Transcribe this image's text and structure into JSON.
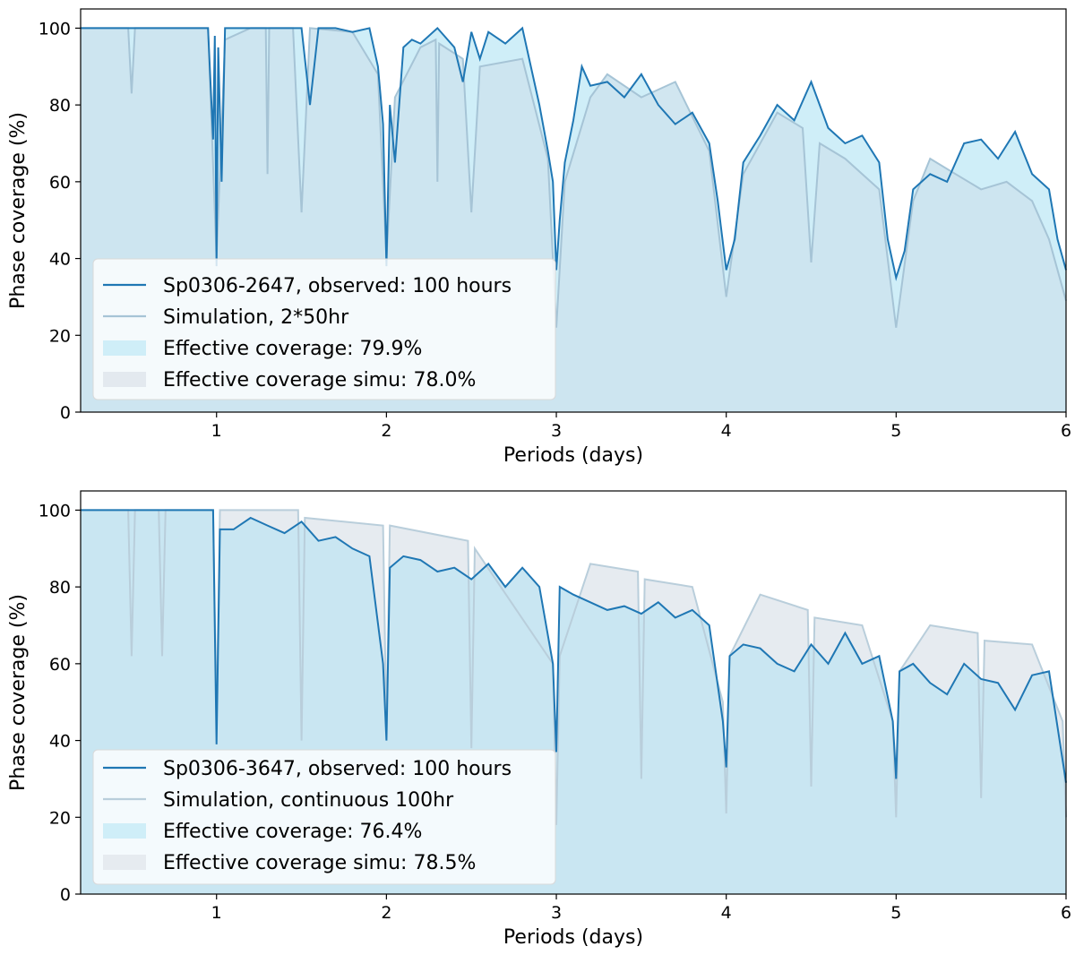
{
  "chart_data": [
    {
      "type": "line",
      "id": "top",
      "title": "",
      "xlabel": "Periods (days)",
      "ylabel": "Phase coverage (%)",
      "xlim": [
        0.2,
        6
      ],
      "ylim": [
        0,
        105
      ],
      "xticks": [
        1,
        2,
        3,
        4,
        5,
        6
      ],
      "xtick_labels": [
        "1",
        "2",
        "3",
        "4",
        "5",
        "6"
      ],
      "yticks": [
        0,
        20,
        40,
        60,
        80,
        100
      ],
      "ytick_labels": [
        "0",
        "20",
        "40",
        "60",
        "80",
        "100"
      ],
      "grid": false,
      "legend_position": "lower-left",
      "legend": [
        {
          "label": "Sp0306-2647, observed: 100 hours",
          "kind": "line",
          "color": "#1f77b4"
        },
        {
          "label": "Simulation, 2*50hr",
          "kind": "line",
          "color": "#a6c4d6"
        },
        {
          "label": "Effective coverage: 79.9%",
          "kind": "patch",
          "color": "#cfeef8"
        },
        {
          "label": "Effective coverage simu: 78.0%",
          "kind": "patch",
          "color": "#e3e9ef"
        }
      ],
      "series": [
        {
          "name": "Sp0306-2647, observed: 100 hours",
          "color": "#1f77b4",
          "x": [
            0.2,
            0.95,
            0.98,
            0.99,
            1.0,
            1.01,
            1.03,
            1.05,
            1.08,
            1.15,
            1.2,
            1.3,
            1.4,
            1.5,
            1.55,
            1.6,
            1.7,
            1.8,
            1.9,
            1.95,
            1.98,
            2.0,
            2.02,
            2.05,
            2.1,
            2.15,
            2.2,
            2.3,
            2.4,
            2.45,
            2.5,
            2.55,
            2.6,
            2.7,
            2.8,
            2.9,
            2.95,
            2.98,
            3.0,
            3.02,
            3.05,
            3.1,
            3.15,
            3.2,
            3.3,
            3.4,
            3.5,
            3.6,
            3.7,
            3.8,
            3.9,
            3.95,
            4.0,
            4.05,
            4.1,
            4.2,
            4.3,
            4.4,
            4.5,
            4.6,
            4.7,
            4.8,
            4.9,
            4.95,
            5.0,
            5.05,
            5.1,
            5.2,
            5.3,
            5.4,
            5.5,
            5.6,
            5.7,
            5.8,
            5.9,
            5.95,
            6.0
          ],
          "y": [
            100,
            100,
            71,
            98,
            38,
            95,
            60,
            100,
            100,
            100,
            100,
            100,
            100,
            100,
            80,
            100,
            100,
            99,
            100,
            90,
            75,
            38,
            80,
            65,
            95,
            97,
            96,
            100,
            95,
            86,
            99,
            92,
            99,
            96,
            100,
            80,
            68,
            60,
            37,
            50,
            65,
            76,
            90,
            85,
            86,
            82,
            88,
            80,
            75,
            78,
            70,
            55,
            37,
            45,
            65,
            72,
            80,
            76,
            86,
            74,
            70,
            72,
            65,
            45,
            35,
            42,
            58,
            62,
            60,
            70,
            71,
            66,
            73,
            62,
            58,
            45,
            37
          ]
        },
        {
          "name": "Simulation, 2*50hr",
          "color": "#a6c4d6",
          "x": [
            0.2,
            0.48,
            0.5,
            0.52,
            0.95,
            1.0,
            1.05,
            1.2,
            1.29,
            1.3,
            1.31,
            1.45,
            1.5,
            1.55,
            1.8,
            1.95,
            2.0,
            2.05,
            2.2,
            2.29,
            2.3,
            2.31,
            2.45,
            2.5,
            2.55,
            2.8,
            2.95,
            3.0,
            3.05,
            3.2,
            3.3,
            3.5,
            3.7,
            3.9,
            4.0,
            4.1,
            4.3,
            4.45,
            4.5,
            4.55,
            4.7,
            4.9,
            5.0,
            5.1,
            5.2,
            5.35,
            5.5,
            5.65,
            5.8,
            5.9,
            6.0
          ],
          "y": [
            100,
            100,
            83,
            100,
            100,
            40,
            97,
            100,
            100,
            62,
            100,
            100,
            52,
            100,
            99,
            88,
            40,
            82,
            95,
            97,
            60,
            96,
            92,
            52,
            90,
            92,
            66,
            22,
            60,
            82,
            88,
            82,
            86,
            68,
            30,
            62,
            78,
            74,
            39,
            70,
            66,
            58,
            22,
            55,
            66,
            62,
            58,
            60,
            55,
            45,
            29
          ]
        }
      ]
    },
    {
      "type": "line",
      "id": "bottom",
      "title": "",
      "xlabel": "Periods (days)",
      "ylabel": "Phase coverage (%)",
      "xlim": [
        0.2,
        6
      ],
      "ylim": [
        0,
        105
      ],
      "xticks": [
        1,
        2,
        3,
        4,
        5,
        6
      ],
      "xtick_labels": [
        "1",
        "2",
        "3",
        "4",
        "5",
        "6"
      ],
      "yticks": [
        0,
        20,
        40,
        60,
        80,
        100
      ],
      "ytick_labels": [
        "0",
        "20",
        "40",
        "60",
        "80",
        "100"
      ],
      "grid": false,
      "legend_position": "lower-left",
      "legend": [
        {
          "label": "Sp0306-3647, observed: 100 hours",
          "kind": "line",
          "color": "#1f77b4"
        },
        {
          "label": "Simulation, continuous 100hr",
          "kind": "line",
          "color": "#b9cedb"
        },
        {
          "label": "Effective coverage: 76.4%",
          "kind": "patch",
          "color": "#cfeef8"
        },
        {
          "label": "Effective coverage simu: 78.5%",
          "kind": "patch",
          "color": "#e6ebf0"
        }
      ],
      "series": [
        {
          "name": "Sp0306-3647, observed: 100 hours",
          "color": "#1f77b4",
          "x": [
            0.2,
            0.98,
            1.0,
            1.02,
            1.1,
            1.2,
            1.3,
            1.4,
            1.5,
            1.6,
            1.7,
            1.8,
            1.9,
            1.98,
            2.0,
            2.02,
            2.1,
            2.2,
            2.3,
            2.4,
            2.5,
            2.6,
            2.7,
            2.8,
            2.9,
            2.98,
            3.0,
            3.02,
            3.1,
            3.2,
            3.3,
            3.4,
            3.5,
            3.6,
            3.7,
            3.8,
            3.9,
            3.98,
            4.0,
            4.02,
            4.1,
            4.2,
            4.3,
            4.4,
            4.5,
            4.6,
            4.7,
            4.8,
            4.9,
            4.98,
            5.0,
            5.02,
            5.1,
            5.2,
            5.3,
            5.4,
            5.5,
            5.6,
            5.7,
            5.8,
            5.9,
            6.0
          ],
          "y": [
            100,
            100,
            39,
            95,
            95,
            98,
            96,
            94,
            97,
            92,
            93,
            90,
            88,
            60,
            40,
            85,
            88,
            87,
            84,
            85,
            82,
            86,
            80,
            85,
            80,
            60,
            37,
            80,
            78,
            76,
            74,
            75,
            73,
            76,
            72,
            74,
            70,
            45,
            33,
            62,
            65,
            64,
            60,
            58,
            65,
            60,
            68,
            60,
            62,
            45,
            30,
            58,
            60,
            55,
            52,
            60,
            56,
            55,
            48,
            57,
            58,
            29
          ]
        },
        {
          "name": "Simulation, continuous 100hr",
          "color": "#b9cedb",
          "x": [
            0.2,
            0.48,
            0.5,
            0.52,
            0.66,
            0.68,
            0.7,
            0.98,
            1.0,
            1.02,
            1.48,
            1.5,
            1.52,
            1.98,
            2.0,
            2.02,
            2.48,
            2.5,
            2.52,
            2.98,
            3.0,
            3.02,
            3.2,
            3.48,
            3.5,
            3.52,
            3.8,
            3.98,
            4.0,
            4.02,
            4.2,
            4.48,
            4.5,
            4.52,
            4.8,
            4.98,
            5.0,
            5.02,
            5.2,
            5.48,
            5.5,
            5.52,
            5.8,
            5.98,
            6.0
          ],
          "y": [
            100,
            100,
            62,
            100,
            100,
            62,
            100,
            100,
            45,
            100,
            100,
            40,
            98,
            96,
            42,
            96,
            92,
            38,
            90,
            60,
            18,
            62,
            86,
            84,
            30,
            82,
            80,
            50,
            21,
            62,
            78,
            74,
            28,
            72,
            70,
            45,
            20,
            58,
            70,
            68,
            25,
            66,
            65,
            45,
            20
          ]
        }
      ]
    }
  ]
}
